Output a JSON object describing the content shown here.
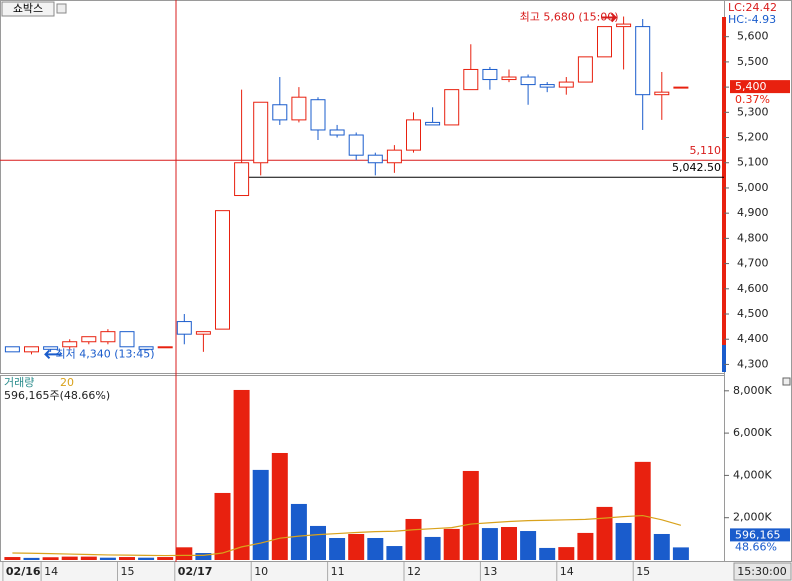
{
  "tab": "쇼박스",
  "cursor_time": "15:30:00",
  "chart_data": [
    {
      "type": "candlestick",
      "categories": [
        "02/16",
        null,
        "14",
        null,
        null,
        null,
        "15",
        null,
        null,
        "02/17",
        null,
        null,
        null,
        "10",
        null,
        null,
        null,
        "11",
        null,
        null,
        null,
        "12",
        null,
        null,
        null,
        "13",
        null,
        null,
        null,
        "14",
        null,
        null,
        null,
        "15",
        null,
        null
      ],
      "open": [
        4370,
        4350,
        4370,
        4370,
        4390,
        4390,
        4430,
        4370,
        4370,
        4470,
        4420,
        4440,
        4970,
        5100,
        5330,
        5270,
        5350,
        5230,
        5210,
        5130,
        5100,
        5150,
        5260,
        5250,
        5390,
        5470,
        5430,
        5440,
        5410,
        5400,
        5420,
        5520,
        5640,
        5640,
        5370,
        5400
      ],
      "high": [
        4370,
        4370,
        4370,
        4400,
        4410,
        4440,
        4430,
        4370,
        4370,
        4500,
        4430,
        4910,
        5390,
        5340,
        5440,
        5400,
        5360,
        5250,
        5220,
        5140,
        5170,
        5300,
        5320,
        5390,
        5570,
        5480,
        5470,
        5450,
        5420,
        5440,
        5520,
        5640,
        5680,
        5670,
        5460,
        5400
      ],
      "low": [
        4350,
        4340,
        4350,
        4360,
        4380,
        4380,
        4370,
        4360,
        4370,
        4380,
        4350,
        4440,
        4970,
        5050,
        5250,
        5260,
        5190,
        5200,
        5110,
        5050,
        5060,
        5140,
        5250,
        5250,
        5390,
        5390,
        5420,
        5330,
        5380,
        5370,
        5420,
        5520,
        5470,
        5230,
        5270,
        5400
      ],
      "close": [
        4350,
        4370,
        4360,
        4390,
        4410,
        4430,
        4370,
        4360,
        4370,
        4420,
        4430,
        4910,
        5100,
        5340,
        5270,
        5360,
        5230,
        5210,
        5130,
        5100,
        5150,
        5270,
        5250,
        5390,
        5470,
        5430,
        5440,
        5410,
        5400,
        5420,
        5520,
        5640,
        5650,
        5370,
        5380,
        5400
      ],
      "up_color": "#e8210f",
      "down_color": "#1a5ccc",
      "ylim": [
        4270,
        5690
      ],
      "yticks": [
        {
          "value": 4300,
          "label": "4,300"
        },
        {
          "value": 4400,
          "label": "4,400"
        },
        {
          "value": 4500,
          "label": "4,500"
        },
        {
          "value": 4600,
          "label": "4,600"
        },
        {
          "value": 4700,
          "label": "4,700"
        },
        {
          "value": 4800,
          "label": "4,800"
        },
        {
          "value": 4900,
          "label": "4,900"
        },
        {
          "value": 5000,
          "label": "5,000"
        },
        {
          "value": 5100,
          "label": "5,100"
        },
        {
          "value": 5200,
          "label": "5,200"
        },
        {
          "value": 5300,
          "label": "5,300"
        },
        {
          "value": 5400,
          "label": "5,400"
        },
        {
          "value": 5500,
          "label": "5,500"
        },
        {
          "value": 5600,
          "label": "5,600"
        }
      ],
      "lines": [
        {
          "value": 5110,
          "label": "5,110",
          "color": "#d81c1c"
        },
        {
          "value": 5042.5,
          "label": "5,042.50",
          "color": "#000000"
        }
      ],
      "current": {
        "value": 5400,
        "label": "5,400",
        "change": "0.37%"
      },
      "lc": "LC:24.42",
      "hc": "HC:-4.93",
      "high_note": "최고 5,680 (15:00)",
      "low_note": "최저 4,340 (13:45)"
    },
    {
      "type": "bar",
      "title": "거래량",
      "ma_period": 20,
      "subtitle": "596,165주(48.66%)",
      "values": [
        140,
        100,
        130,
        160,
        160,
        110,
        140,
        110,
        140,
        600,
        330,
        3170,
        8040,
        4260,
        5060,
        2650,
        1610,
        1040,
        1230,
        1040,
        660,
        1940,
        1090,
        1470,
        4210,
        1510,
        1560,
        1370,
        570,
        610,
        1280,
        2510,
        1750,
        4640,
        1230,
        596.165
      ],
      "value_labels": [
        null,
        null,
        null,
        null,
        null,
        null,
        null,
        null,
        null,
        null,
        null,
        null,
        null,
        null,
        null,
        null,
        null,
        null,
        null,
        null,
        null,
        null,
        null,
        null,
        null,
        null,
        null,
        null,
        null,
        null,
        null,
        null,
        null,
        null,
        null,
        "596,165"
      ],
      "ma": [
        330,
        320,
        300,
        280,
        260,
        240,
        230,
        220,
        210,
        220,
        220,
        330,
        620,
        800,
        1030,
        1130,
        1200,
        1250,
        1300,
        1340,
        1360,
        1430,
        1480,
        1530,
        1700,
        1760,
        1820,
        1860,
        1880,
        1900,
        1920,
        1980,
        2050,
        2100,
        1900,
        1640
      ],
      "ma_color": "#d9a21c",
      "ratio": "48.66%",
      "ylim": [
        0,
        8700
      ],
      "yticks": [
        {
          "value": 2000,
          "label": "2,000K"
        },
        {
          "value": 4000,
          "label": "4,000K"
        },
        {
          "value": 6000,
          "label": "6,000K"
        },
        {
          "value": 8000,
          "label": "8,000K"
        }
      ]
    }
  ]
}
